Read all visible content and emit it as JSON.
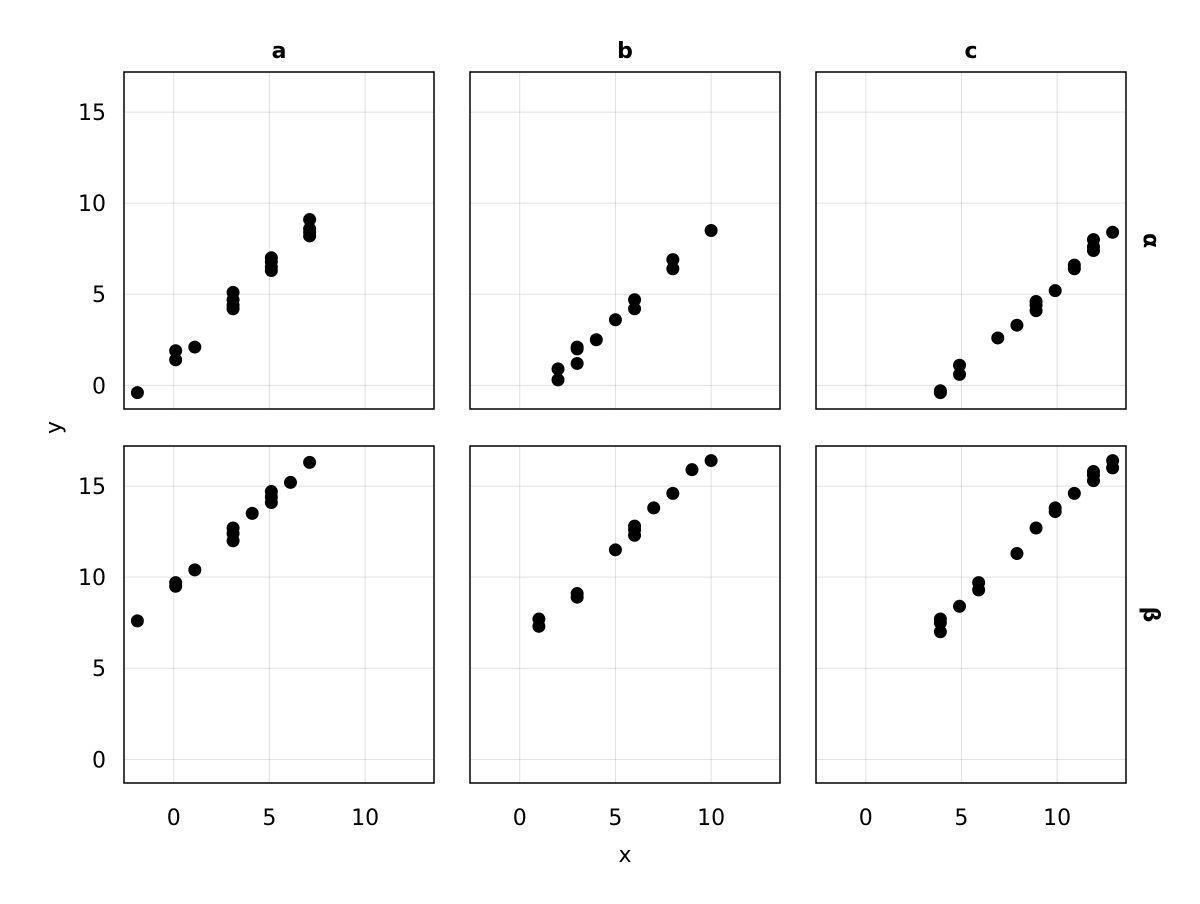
{
  "chart_data": {
    "type": "scatter",
    "layout": "facet-grid",
    "xlabel": "x",
    "ylabel": "y",
    "xlim": [
      -2.6,
      13.6
    ],
    "ylim": [
      -1.3,
      17.2
    ],
    "x_ticks": [
      0,
      5,
      10
    ],
    "y_ticks": [
      0,
      5,
      10,
      15
    ],
    "grid": true,
    "columns": [
      "a",
      "b",
      "c"
    ],
    "rows": [
      "α",
      "β"
    ],
    "panels": [
      {
        "col": "a",
        "row": "α",
        "points": [
          [
            -1.9,
            -0.4
          ],
          [
            0.1,
            1.4
          ],
          [
            0.1,
            1.9
          ],
          [
            1.1,
            2.1
          ],
          [
            3.1,
            4.2
          ],
          [
            3.1,
            4.4
          ],
          [
            3.1,
            4.7
          ],
          [
            3.1,
            5.1
          ],
          [
            5.1,
            6.3
          ],
          [
            5.1,
            6.5
          ],
          [
            5.1,
            6.8
          ],
          [
            5.1,
            7.0
          ],
          [
            7.1,
            8.2
          ],
          [
            7.1,
            8.4
          ],
          [
            7.1,
            8.6
          ],
          [
            7.1,
            9.1
          ]
        ]
      },
      {
        "col": "b",
        "row": "α",
        "points": [
          [
            2.0,
            0.3
          ],
          [
            2.0,
            0.9
          ],
          [
            3.0,
            1.2
          ],
          [
            3.0,
            2.0
          ],
          [
            3.0,
            2.1
          ],
          [
            4.0,
            2.5
          ],
          [
            5.0,
            3.6
          ],
          [
            6.0,
            4.2
          ],
          [
            6.0,
            4.7
          ],
          [
            8.0,
            6.4
          ],
          [
            8.0,
            6.9
          ],
          [
            10.0,
            8.5
          ]
        ]
      },
      {
        "col": "c",
        "row": "α",
        "points": [
          [
            3.9,
            -0.4
          ],
          [
            3.9,
            -0.3
          ],
          [
            4.9,
            0.6
          ],
          [
            4.9,
            1.1
          ],
          [
            6.9,
            2.6
          ],
          [
            7.9,
            3.3
          ],
          [
            8.9,
            4.1
          ],
          [
            8.9,
            4.4
          ],
          [
            8.9,
            4.6
          ],
          [
            9.9,
            5.2
          ],
          [
            10.9,
            6.4
          ],
          [
            10.9,
            6.6
          ],
          [
            11.9,
            7.4
          ],
          [
            11.9,
            7.6
          ],
          [
            11.9,
            8.0
          ],
          [
            12.9,
            8.4
          ]
        ]
      },
      {
        "col": "a",
        "row": "β",
        "points": [
          [
            -1.9,
            7.6
          ],
          [
            0.1,
            9.5
          ],
          [
            0.1,
            9.7
          ],
          [
            1.1,
            10.4
          ],
          [
            3.1,
            12.0
          ],
          [
            3.1,
            12.4
          ],
          [
            3.1,
            12.7
          ],
          [
            4.1,
            13.5
          ],
          [
            5.1,
            14.1
          ],
          [
            5.1,
            14.4
          ],
          [
            5.1,
            14.7
          ],
          [
            6.1,
            15.2
          ],
          [
            7.1,
            16.3
          ]
        ]
      },
      {
        "col": "b",
        "row": "β",
        "points": [
          [
            1.0,
            7.3
          ],
          [
            1.0,
            7.7
          ],
          [
            3.0,
            8.9
          ],
          [
            3.0,
            9.1
          ],
          [
            5.0,
            11.5
          ],
          [
            6.0,
            12.3
          ],
          [
            6.0,
            12.6
          ],
          [
            6.0,
            12.8
          ],
          [
            7.0,
            13.8
          ],
          [
            8.0,
            14.6
          ],
          [
            9.0,
            15.9
          ],
          [
            10.0,
            16.4
          ]
        ]
      },
      {
        "col": "c",
        "row": "β",
        "points": [
          [
            3.9,
            7.0
          ],
          [
            3.9,
            7.5
          ],
          [
            3.9,
            7.7
          ],
          [
            4.9,
            8.4
          ],
          [
            5.9,
            9.3
          ],
          [
            5.9,
            9.7
          ],
          [
            7.9,
            11.3
          ],
          [
            8.9,
            12.7
          ],
          [
            9.9,
            13.6
          ],
          [
            9.9,
            13.8
          ],
          [
            10.9,
            14.6
          ],
          [
            11.9,
            15.3
          ],
          [
            11.9,
            15.6
          ],
          [
            11.9,
            15.8
          ],
          [
            12.9,
            16.0
          ],
          [
            12.9,
            16.4
          ]
        ]
      }
    ]
  }
}
